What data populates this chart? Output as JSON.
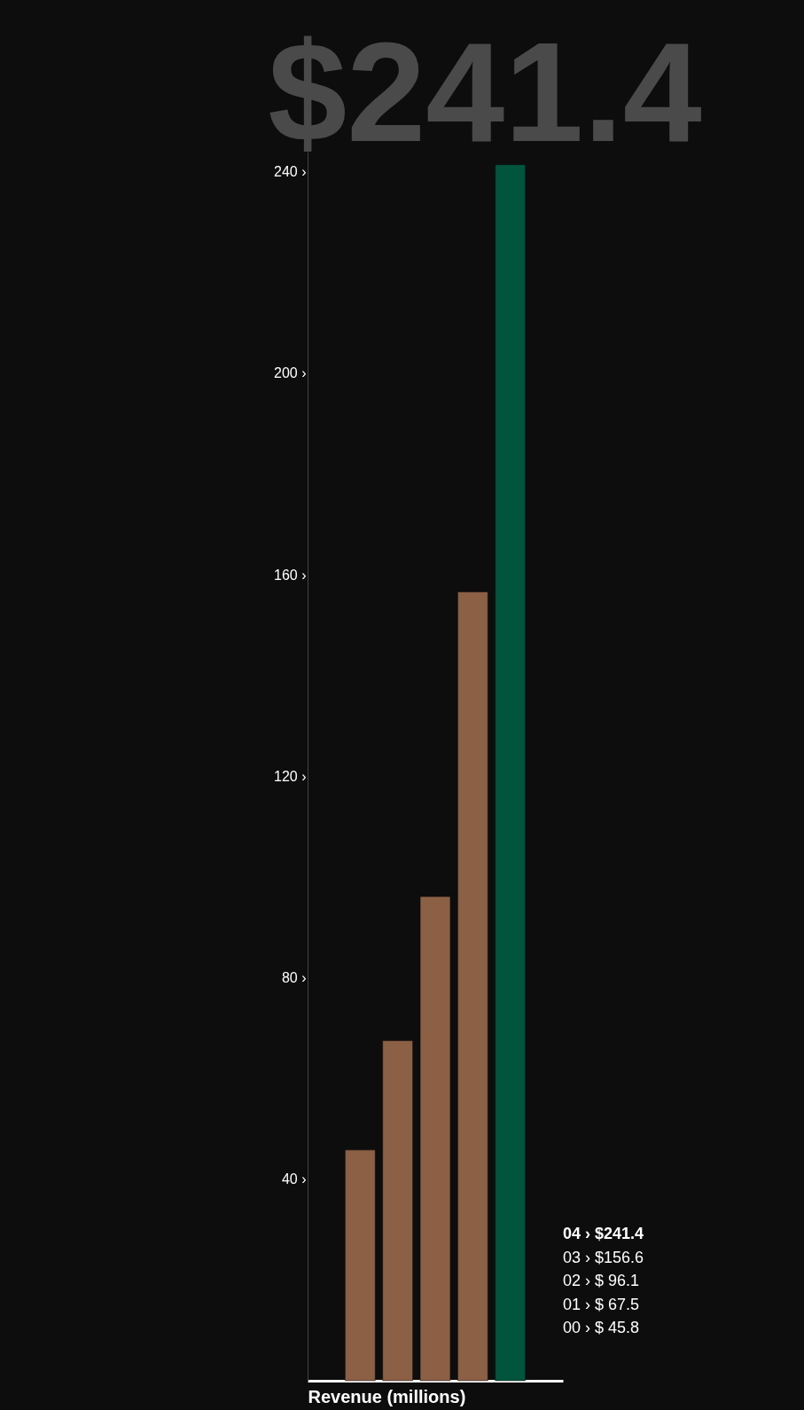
{
  "chart_data": {
    "type": "bar",
    "title": "$241.4",
    "xlabel": "Revenue (millions)",
    "categories": [
      null,
      null,
      null,
      null,
      null
    ],
    "values": [
      45.8,
      67.5,
      96.1,
      156.6,
      241.4
    ],
    "colors": [
      "#8b6045",
      "#8b6045",
      "#8b6045",
      "#8b6045",
      "#00553c"
    ],
    "ylim": [
      0,
      244
    ],
    "yticks": [
      {
        "value": 40,
        "label": "40 ›"
      },
      {
        "value": 80,
        "label": "80 ›"
      },
      {
        "value": 120,
        "label": "120 ›"
      },
      {
        "value": 160,
        "label": "160 ›"
      },
      {
        "value": 200,
        "label": "200 ›"
      },
      {
        "value": 240,
        "label": "240 ›"
      }
    ],
    "annotations": [
      "04 › $241.4",
      "03 › $156.6",
      "02 › $  96.1",
      "01 › $  67.5",
      "00 › $  45.8"
    ],
    "grid": false,
    "legend": false
  }
}
